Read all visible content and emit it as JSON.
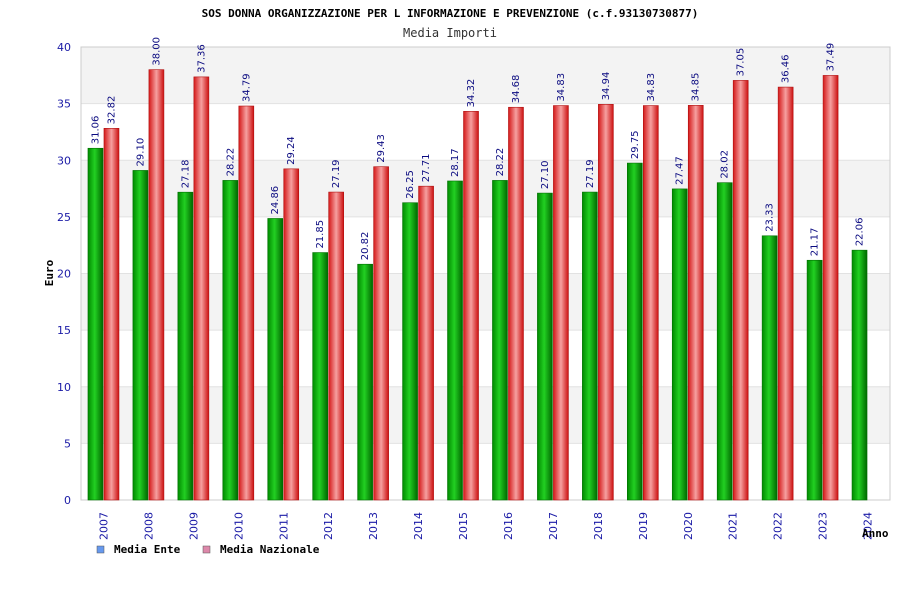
{
  "chart_data": {
    "type": "bar",
    "title": "SOS DONNA ORGANIZZAZIONE PER L INFORMAZIONE E PREVENZIONE (c.f.93130730877)",
    "subtitle": "Media Importi",
    "xlabel": "Anno",
    "ylabel": "Euro",
    "ylim": [
      0,
      40
    ],
    "yticks": [
      0,
      5,
      10,
      15,
      20,
      25,
      30,
      35,
      40
    ],
    "categories": [
      "2007",
      "2008",
      "2009",
      "2010",
      "2011",
      "2012",
      "2013",
      "2014",
      "2015",
      "2016",
      "2017",
      "2018",
      "2019",
      "2020",
      "2021",
      "2022",
      "2023",
      "2024"
    ],
    "series": [
      {
        "name": "Media Ente",
        "color": "#00a000",
        "legend_color": "#6699ee",
        "values": [
          31.06,
          29.1,
          27.18,
          28.22,
          24.86,
          21.85,
          20.82,
          26.25,
          28.17,
          28.22,
          27.1,
          27.19,
          29.75,
          27.47,
          28.02,
          23.33,
          21.17,
          22.06
        ],
        "labels": [
          "31.06",
          "29.10",
          "27.18",
          "28.22",
          "24.86",
          "21.85",
          "20.82",
          "26.25",
          "28.17",
          "28.22",
          "27.10",
          "27.19",
          "29.75",
          "27.47",
          "28.02",
          "23.33",
          "21.17",
          "22.06"
        ]
      },
      {
        "name": "Media Nazionale",
        "color": "#e02020",
        "legend_color": "#dd88aa",
        "values": [
          32.82,
          38.0,
          37.36,
          34.79,
          29.24,
          27.19,
          29.43,
          27.71,
          34.32,
          34.68,
          34.83,
          34.94,
          34.83,
          34.85,
          37.05,
          36.46,
          37.49,
          null
        ],
        "labels": [
          "32.82",
          "38.00",
          "37.36",
          "34.79",
          "29.24",
          "27.19",
          "29.43",
          "27.71",
          "34.32",
          "34.68",
          "34.83",
          "34.94",
          "34.83",
          "34.85",
          "37.05",
          "36.46",
          "37.49",
          ""
        ]
      }
    ],
    "grid": true,
    "legend_position": "bottom-left"
  }
}
